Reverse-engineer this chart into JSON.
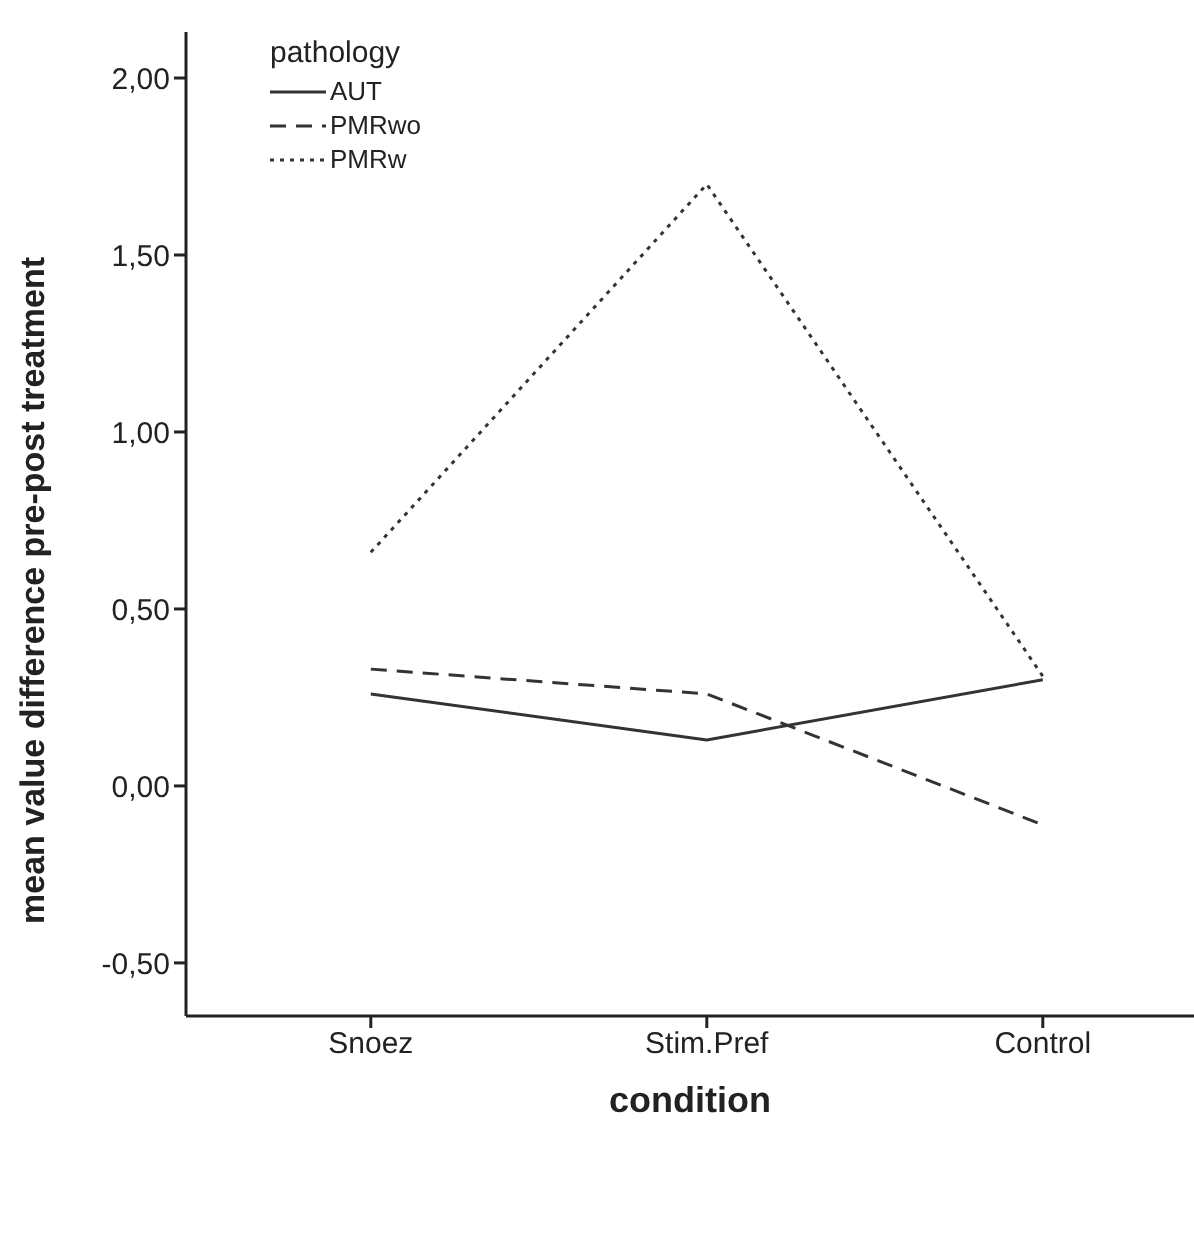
{
  "chart_data": {
    "type": "line",
    "xlabel": "condition",
    "ylabel": "mean value difference pre-post treatment",
    "legend_title": "pathology",
    "legend": "top left",
    "grid": false,
    "marker": "none",
    "categories": [
      "Snoez",
      "Stim.Pref",
      "Control"
    ],
    "series": [
      {
        "name": "AUT",
        "color": "#333333",
        "line_style": "solid",
        "values": [
          0.26,
          0.13,
          0.3
        ]
      },
      {
        "name": "PMRwo",
        "color": "#333333",
        "line_style": "dashed",
        "values": [
          0.33,
          0.26,
          -0.11
        ]
      },
      {
        "name": "PMRw",
        "color": "#333333",
        "line_style": "dotted",
        "values": [
          0.66,
          1.7,
          0.31
        ]
      }
    ],
    "ylim": [
      -0.65,
      2.13
    ],
    "yticks": [
      {
        "value": -0.5,
        "label": "-0,50"
      },
      {
        "value": 0,
        "label": "0,00"
      },
      {
        "value": 0.5,
        "label": "0,50"
      },
      {
        "value": 1,
        "label": "1,00"
      },
      {
        "value": 1.5,
        "label": "1,50"
      },
      {
        "value": 2,
        "label": "2,00"
      }
    ]
  }
}
